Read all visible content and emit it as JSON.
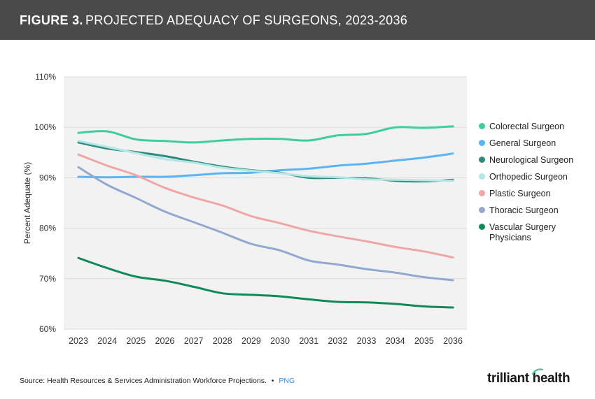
{
  "header": {
    "figure_label": "FIGURE 3.",
    "title": "PROJECTED ADEQUACY OF SURGEONS, 2023-2036"
  },
  "chart_data": {
    "type": "line",
    "title": "PROJECTED ADEQUACY OF SURGEONS, 2023-2036",
    "xlabel": "",
    "ylabel": "Percent Adequate (%)",
    "ylim": [
      60,
      110
    ],
    "yticks": [
      60,
      70,
      80,
      90,
      100,
      110
    ],
    "ytick_labels": [
      "60%",
      "70%",
      "80%",
      "90%",
      "100%",
      "110%"
    ],
    "grid": true,
    "legend_position": "right",
    "x": [
      "2023",
      "2024",
      "2025",
      "2026",
      "2027",
      "2028",
      "2029",
      "2030",
      "2031",
      "2032",
      "2033",
      "2034",
      "2035",
      "2036"
    ],
    "series": [
      {
        "name": "Colorectal Surgeon",
        "color": "#3dcf9b",
        "values": [
          98.9,
          99.2,
          97.6,
          97.3,
          97.0,
          97.4,
          97.7,
          97.7,
          97.4,
          98.4,
          98.7,
          100.0,
          99.9,
          100.2
        ]
      },
      {
        "name": "General Surgeon",
        "color": "#5ab4f5",
        "values": [
          90.2,
          90.1,
          90.2,
          90.2,
          90.5,
          90.9,
          91.0,
          91.5,
          91.8,
          92.4,
          92.8,
          93.4,
          94.0,
          94.8
        ]
      },
      {
        "name": "Neurological Surgeon",
        "color": "#2e8b7a",
        "values": [
          97.0,
          95.8,
          95.1,
          94.3,
          93.2,
          92.2,
          91.5,
          91.0,
          90.0,
          90.0,
          89.9,
          89.4,
          89.3,
          89.6
        ]
      },
      {
        "name": "Orthopedic Surgeon",
        "color": "#b3e6e6",
        "values": [
          97.3,
          96.1,
          94.9,
          93.7,
          93.0,
          92.0,
          91.4,
          90.9,
          90.3,
          90.1,
          89.7,
          89.6,
          89.5,
          89.4
        ]
      },
      {
        "name": "Plastic Surgeon",
        "color": "#f0a6a6",
        "values": [
          94.6,
          92.4,
          90.5,
          88.0,
          86.1,
          84.5,
          82.4,
          81.0,
          79.5,
          78.4,
          77.4,
          76.3,
          75.4,
          74.2
        ]
      },
      {
        "name": "Thoracic Surgeon",
        "color": "#92a9cf",
        "values": [
          92.1,
          88.6,
          86.0,
          83.3,
          81.2,
          79.1,
          76.9,
          75.6,
          73.6,
          72.8,
          71.9,
          71.2,
          70.3,
          69.7
        ]
      },
      {
        "name": "Vascular Surgery Physicians",
        "color": "#108a5a",
        "values": [
          74.1,
          72.1,
          70.4,
          69.6,
          68.4,
          67.1,
          66.8,
          66.5,
          65.9,
          65.4,
          65.3,
          65.0,
          64.5,
          64.3
        ]
      }
    ]
  },
  "legend": {
    "items": [
      "Colorectal Surgeon",
      "General Surgeon",
      "Neurological Surgeon",
      "Orthopedic Surgeon",
      "Plastic Surgeon",
      "Thoracic Surgeon",
      "Vascular Surgery Physicians"
    ]
  },
  "footer": {
    "source": "Source: Health Resources & Services Administration Workforce Projections.",
    "separator": "•",
    "png_link": "PNG"
  },
  "logo": {
    "text": "trilliant health"
  }
}
